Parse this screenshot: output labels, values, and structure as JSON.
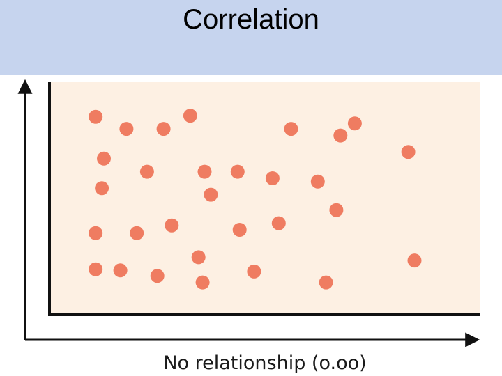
{
  "slide": {
    "title": "Correlation"
  },
  "colors": {
    "header_background": "#c6d4ee",
    "plot_background": "#fdf0e3",
    "point": "#ef7c61",
    "axis": "#111111"
  },
  "chart_data": {
    "type": "scatter",
    "title": "",
    "caption": "No relationship (o.oo)",
    "xlabel": "",
    "ylabel": "",
    "xlim": [
      0,
      100
    ],
    "ylim": [
      0,
      100
    ],
    "grid": false,
    "series": [
      {
        "points": [
          {
            "x": 8,
            "y": 88
          },
          {
            "x": 15.5,
            "y": 82.5
          },
          {
            "x": 24.5,
            "y": 82.5
          },
          {
            "x": 31,
            "y": 88.5
          },
          {
            "x": 55.5,
            "y": 82.5
          },
          {
            "x": 67.5,
            "y": 79.5
          },
          {
            "x": 71,
            "y": 85
          },
          {
            "x": 84,
            "y": 72
          },
          {
            "x": 10,
            "y": 69
          },
          {
            "x": 20.5,
            "y": 63
          },
          {
            "x": 34.5,
            "y": 63
          },
          {
            "x": 42.5,
            "y": 63
          },
          {
            "x": 51,
            "y": 60
          },
          {
            "x": 62,
            "y": 58.5
          },
          {
            "x": 9.5,
            "y": 55.5
          },
          {
            "x": 36,
            "y": 52.5
          },
          {
            "x": 66.5,
            "y": 45.5
          },
          {
            "x": 8,
            "y": 35
          },
          {
            "x": 18,
            "y": 35
          },
          {
            "x": 26.5,
            "y": 38.5
          },
          {
            "x": 43,
            "y": 36.5
          },
          {
            "x": 52.5,
            "y": 39.5
          },
          {
            "x": 33,
            "y": 24
          },
          {
            "x": 85.5,
            "y": 22.5
          },
          {
            "x": 8,
            "y": 18.5
          },
          {
            "x": 14,
            "y": 18
          },
          {
            "x": 23,
            "y": 15.5
          },
          {
            "x": 34,
            "y": 12.5
          },
          {
            "x": 46.5,
            "y": 17.5
          },
          {
            "x": 64,
            "y": 12.5
          }
        ]
      }
    ]
  }
}
